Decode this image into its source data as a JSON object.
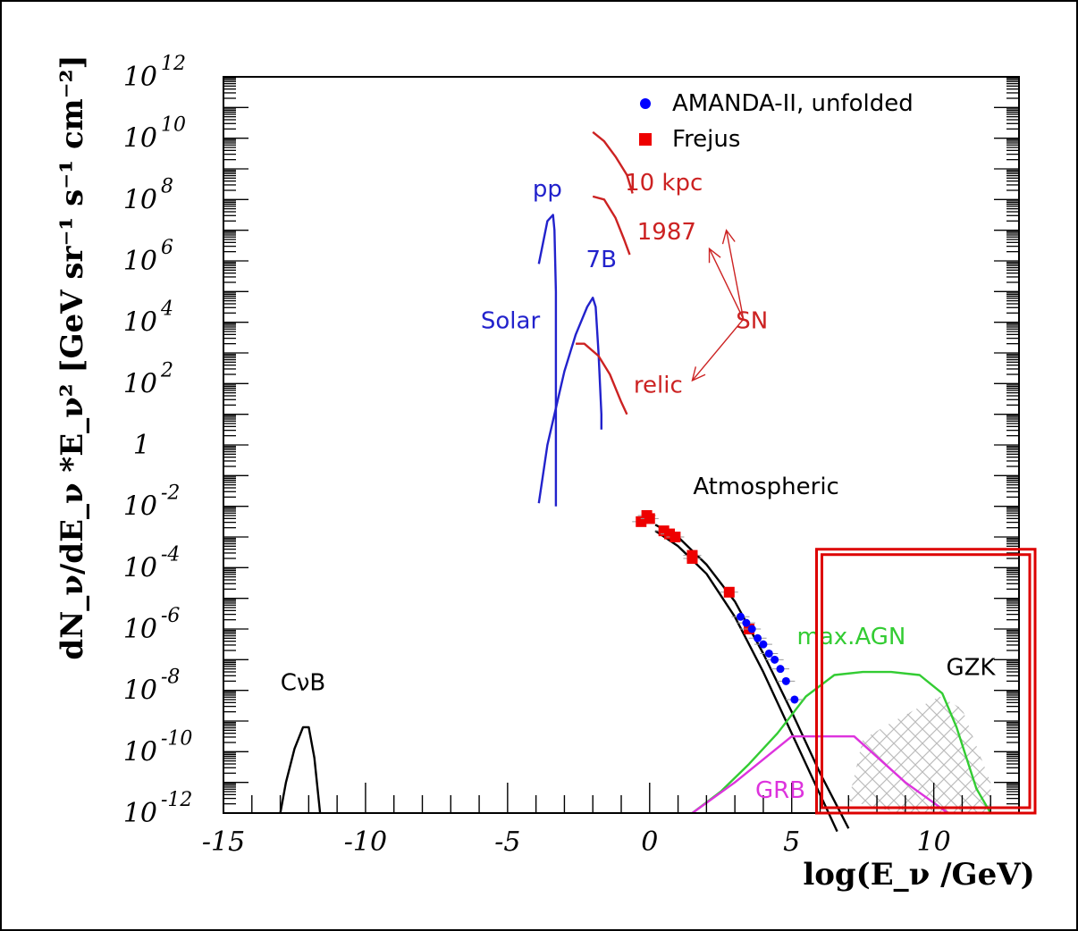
{
  "chart_data": {
    "type": "line",
    "xlabel": "log(E_ν /GeV)",
    "ylabel": "dN_ν/dE_ν *E_ν² [GeV sr⁻¹ s⁻¹ cm⁻²]",
    "xlim": [
      -15,
      13
    ],
    "ylim": [
      -12,
      12
    ],
    "x_ticks": [
      {
        "value": -15,
        "label": "-15"
      },
      {
        "value": -10,
        "label": "-10"
      },
      {
        "value": -5,
        "label": "-5"
      },
      {
        "value": 0,
        "label": "0"
      },
      {
        "value": 5,
        "label": "5"
      },
      {
        "value": 10,
        "label": "10"
      }
    ],
    "y_ticks": [
      {
        "value": 12,
        "base": "10",
        "exp": "12"
      },
      {
        "value": 10,
        "base": "10",
        "exp": "10"
      },
      {
        "value": 8,
        "base": "10",
        "exp": "8"
      },
      {
        "value": 6,
        "base": "10",
        "exp": "6"
      },
      {
        "value": 4,
        "base": "10",
        "exp": "4"
      },
      {
        "value": 2,
        "base": "10",
        "exp": "2"
      },
      {
        "value": 0,
        "base": "1",
        "exp": ""
      },
      {
        "value": -2,
        "base": "10",
        "exp": "-2"
      },
      {
        "value": -4,
        "base": "10",
        "exp": "-4"
      },
      {
        "value": -6,
        "base": "10",
        "exp": "-6"
      },
      {
        "value": -8,
        "base": "10",
        "exp": "-8"
      },
      {
        "value": -10,
        "base": "10",
        "exp": "-10"
      },
      {
        "value": -12,
        "base": "10",
        "exp": "-12"
      }
    ],
    "legend": {
      "position": "top-right",
      "entries": [
        {
          "label": "AMANDA-II, unfolded",
          "marker": "circle",
          "color": "#0000ff"
        },
        {
          "label": "Frejus",
          "marker": "square",
          "color": "#ee0000"
        }
      ]
    },
    "series": [
      {
        "name": "CνB",
        "color": "#000000",
        "x": [
          -13.0,
          -12.8,
          -12.5,
          -12.2,
          -12.0,
          -11.8,
          -11.6
        ],
        "y": [
          -12.0,
          -11.0,
          -9.9,
          -9.2,
          -9.2,
          -10.2,
          -12.0
        ]
      },
      {
        "name": "Solar",
        "color": "#2222cc",
        "x": [
          -3.9,
          -3.6,
          -3.4,
          -3.35,
          -3.3,
          -3.3,
          -3.3
        ],
        "y": [
          5.9,
          7.3,
          7.5,
          7.0,
          5.0,
          0.0,
          -2.0
        ]
      },
      {
        "name": "Solar-pp-rise",
        "color": "#2222cc",
        "x": [
          -3.9,
          -3.6,
          -3.3,
          -3.0,
          -2.6,
          -2.2,
          -2.0,
          -1.9,
          -1.8,
          -1.7,
          -1.7
        ],
        "y": [
          -1.9,
          0.0,
          1.2,
          2.4,
          3.6,
          4.5,
          4.8,
          4.5,
          3.0,
          1.0,
          0.5
        ]
      },
      {
        "name": "relic",
        "color": "#cc2222",
        "x": [
          -2.6,
          -2.3,
          -1.8,
          -1.4,
          -1.0,
          -0.8
        ],
        "y": [
          3.3,
          3.3,
          2.9,
          2.3,
          1.4,
          1.0
        ]
      },
      {
        "name": "1987",
        "color": "#cc2222",
        "x": [
          -2.0,
          -1.6,
          -1.2,
          -0.9,
          -0.7
        ],
        "y": [
          8.1,
          8.0,
          7.4,
          6.7,
          6.2
        ]
      },
      {
        "name": "10 kpc",
        "color": "#cc2222",
        "x": [
          -2.0,
          -1.6,
          -1.2,
          -0.8,
          -0.6
        ],
        "y": [
          10.2,
          9.9,
          9.4,
          8.8,
          8.2
        ]
      },
      {
        "name": "Atmospheric",
        "color": "#000000",
        "x": [
          0.2,
          1.0,
          2.0,
          3.0,
          4.0,
          5.0,
          6.0,
          7.0
        ],
        "y": [
          -2.6,
          -3.0,
          -3.9,
          -5.1,
          -6.8,
          -8.7,
          -10.7,
          -12.5
        ]
      },
      {
        "name": "Atmospheric-lower",
        "color": "#000000",
        "x": [
          0.2,
          1.0,
          2.0,
          3.0,
          4.0,
          5.0,
          6.0,
          6.6
        ],
        "y": [
          -2.8,
          -3.3,
          -4.2,
          -5.6,
          -7.4,
          -9.4,
          -11.4,
          -12.6
        ]
      },
      {
        "name": "max.AGN",
        "color": "#33cc33",
        "x": [
          1.5,
          2.5,
          3.5,
          4.5,
          5.5,
          6.5,
          7.5,
          8.5,
          9.5,
          10.3,
          10.8,
          11.5,
          12.0
        ],
        "y": [
          -12.0,
          -11.3,
          -10.4,
          -9.4,
          -8.2,
          -7.5,
          -7.4,
          -7.4,
          -7.5,
          -8.1,
          -9.2,
          -11.2,
          -12.0
        ]
      },
      {
        "name": "GRB",
        "color": "#dd33dd",
        "x": [
          1.5,
          3.0,
          5.0,
          5.2,
          7.0,
          7.2,
          9.0,
          10.5
        ],
        "y": [
          -12.0,
          -11.0,
          -9.5,
          -9.5,
          -9.5,
          -9.5,
          -11.0,
          -12.0
        ]
      }
    ],
    "points": [
      {
        "name": "Frejus",
        "color": "#ee0000",
        "x": [
          -0.3,
          -0.1,
          0.0,
          0.5,
          0.7,
          0.9,
          1.5,
          1.5,
          2.8,
          3.5
        ],
        "y": [
          -2.5,
          -2.3,
          -2.4,
          -2.8,
          -2.9,
          -3.0,
          -3.6,
          -3.7,
          -4.8,
          -6.0
        ]
      },
      {
        "name": "AMANDA-II, unfolded",
        "color": "#0000ff",
        "x": [
          3.2,
          3.4,
          3.6,
          3.8,
          4.0,
          4.2,
          4.4,
          4.6,
          4.8,
          5.1
        ],
        "y": [
          -5.6,
          -5.8,
          -6.0,
          -6.3,
          -6.5,
          -6.8,
          -7.0,
          -7.3,
          -7.7,
          -8.3
        ]
      }
    ],
    "gzk_band": {
      "label": "GZK",
      "x": [
        7.5,
        12.0
      ],
      "y_upper": [
        -9.0,
        -9.0
      ],
      "y_lower": [
        -12.0,
        -12.0
      ]
    },
    "annotations": [
      {
        "text": "CνB",
        "color": "#000000",
        "x": -12.2,
        "y": -8.0
      },
      {
        "text": "pp",
        "color": "#2222cc",
        "x": -3.6,
        "y": 8.1
      },
      {
        "text": "7B",
        "color": "#2222cc",
        "x": -1.7,
        "y": 5.8
      },
      {
        "text": "Solar",
        "color": "#2222cc",
        "x": -4.9,
        "y": 3.8
      },
      {
        "text": "10 kpc",
        "color": "#cc2222",
        "x": 0.5,
        "y": 8.3
      },
      {
        "text": "1987",
        "color": "#cc2222",
        "x": 0.6,
        "y": 6.7
      },
      {
        "text": "SN",
        "color": "#cc2222",
        "x": 3.6,
        "y": 3.8
      },
      {
        "text": "relic",
        "color": "#cc2222",
        "x": 0.3,
        "y": 1.7
      },
      {
        "text": "Atmospheric",
        "color": "#000000",
        "x": 4.1,
        "y": -1.6
      },
      {
        "text": "max.AGN",
        "color": "#33cc33",
        "x": 7.1,
        "y": -6.5
      },
      {
        "text": "GZK",
        "color": "#000000",
        "x": 11.3,
        "y": -7.5
      },
      {
        "text": "GRB",
        "color": "#dd33dd",
        "x": 4.6,
        "y": -11.5
      }
    ],
    "highlight_box": {
      "color": "#dd0000",
      "x": [
        6.0,
        13.0
      ],
      "y": [
        -12.0,
        -3.4
      ]
    }
  }
}
